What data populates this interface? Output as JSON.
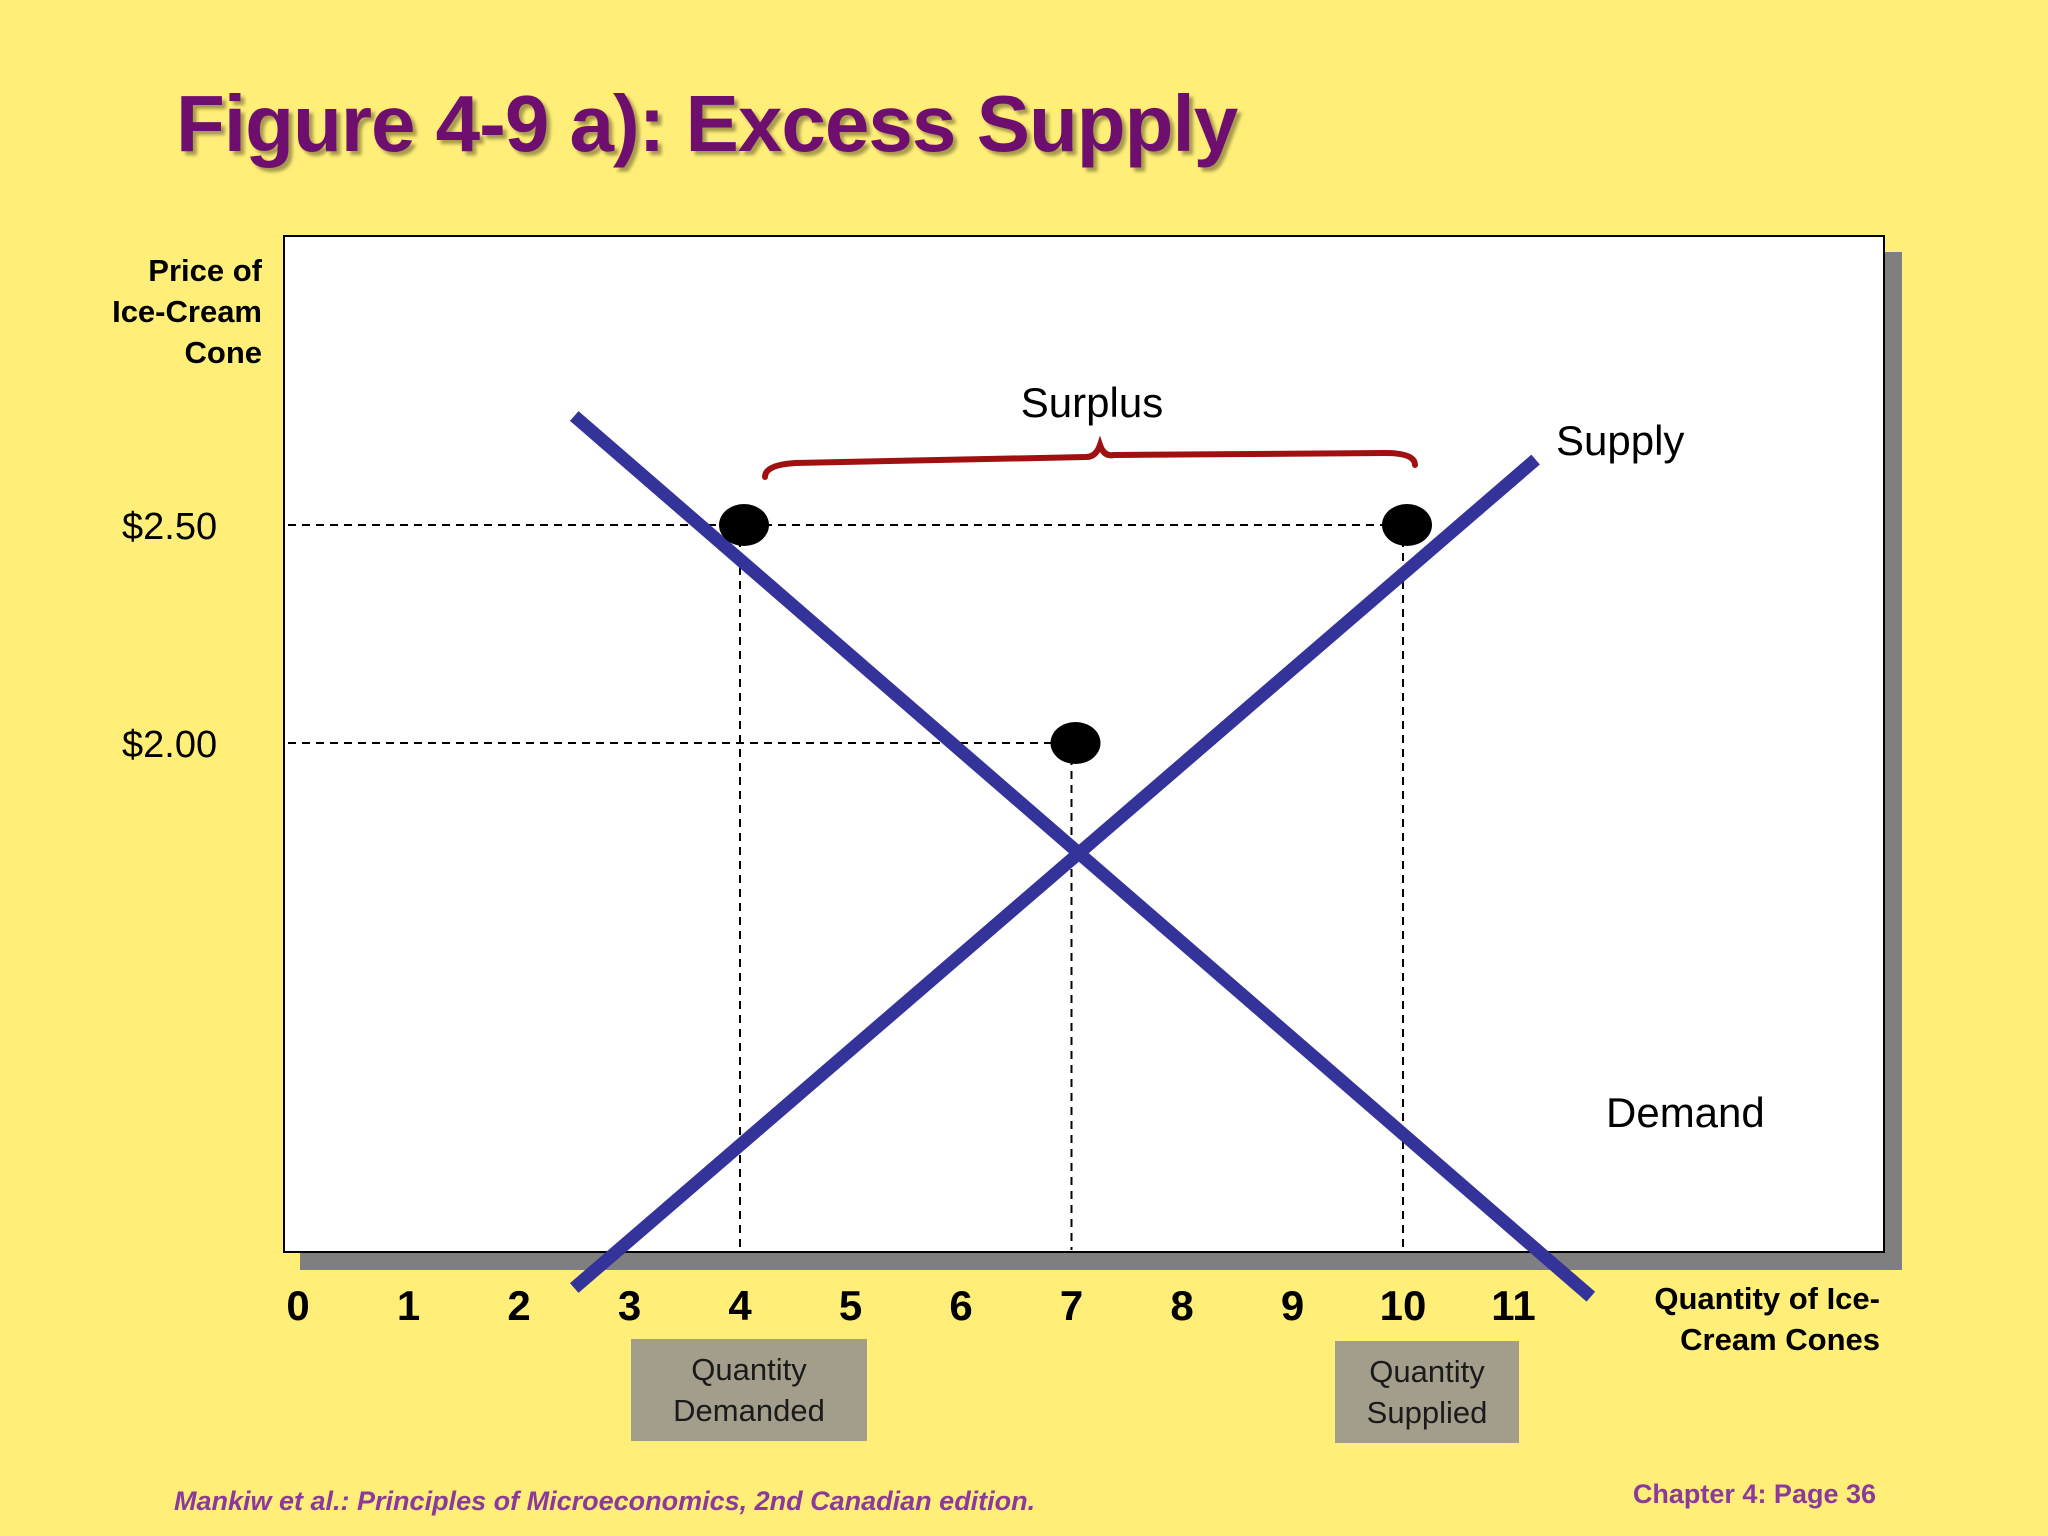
{
  "title": "Figure 4-9 a): Excess Supply",
  "footer": {
    "source": "Mankiw et al.: Principles of Microeconomics, 2nd Canadian edition.",
    "page": "Chapter 4: Page 36"
  },
  "colors": {
    "background": "#FFEE77",
    "title": "#6E0E6E",
    "curves": "#333399",
    "surplus_brace": "#A01010",
    "footer": "#8B3A9C",
    "label_box": "#A39E8C"
  },
  "chart_data": {
    "type": "line",
    "title": "Figure 4-9 a): Excess Supply",
    "xlabel_lines": [
      "Quantity of Ice-",
      "Cream Cones"
    ],
    "ylabel_lines": [
      "Price of",
      "Ice-Cream",
      "Cone"
    ],
    "x_ticks": [
      0,
      1,
      2,
      3,
      4,
      5,
      6,
      7,
      8,
      9,
      10,
      11
    ],
    "y_ticks": [
      {
        "value": 2.0,
        "label": "$2.00"
      },
      {
        "value": 2.5,
        "label": "$2.50"
      }
    ],
    "series": [
      {
        "name": "Supply",
        "points": [
          [
            2.5,
            0.75
          ],
          [
            11.2,
            2.65
          ]
        ]
      },
      {
        "name": "Demand",
        "points": [
          [
            2.5,
            2.75
          ],
          [
            11.7,
            0.73
          ]
        ]
      }
    ],
    "points_marked": [
      {
        "x": 4,
        "y": 2.5
      },
      {
        "x": 10,
        "y": 2.5
      },
      {
        "x": 7,
        "y": 2.0
      }
    ],
    "annotation": {
      "text": "Surplus",
      "from_x": 4,
      "to_x": 10,
      "at_price": 2.5
    },
    "quantity_labels": [
      {
        "text": "Quantity Demanded",
        "x": 4
      },
      {
        "text": "Quantity Supplied",
        "x": 10
      }
    ],
    "grid": false
  }
}
